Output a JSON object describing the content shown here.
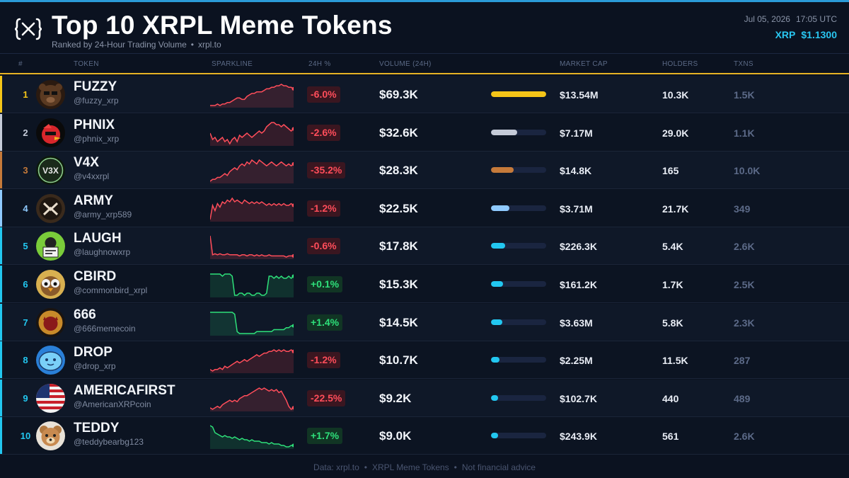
{
  "header": {
    "title": "Top 10 XRPL Meme Tokens",
    "subtitle_left": "Ranked by 24-Hour Trading Volume",
    "subtitle_sep": "•",
    "subtitle_right": "xrpl.to",
    "date": "Jul 05, 2026",
    "time": "17:05 UTC",
    "xrp_label": "XRP",
    "xrp_price": "$1.1300"
  },
  "columns": {
    "rank": "#",
    "token": "TOKEN",
    "sparkline": "SPARKLINE",
    "change": "24H %",
    "volume": "VOLUME (24H)",
    "market_cap": "MARKET CAP",
    "holders": "HOLDERS",
    "txns": "TXNS"
  },
  "colors": {
    "negative": "#ff4d5a",
    "positive": "#2ee07a",
    "gold": "#f5c518",
    "silver": "#c5cbd8",
    "bronze": "#c67a3a",
    "light_blue": "#8fcaff",
    "cyan": "#22c7f0"
  },
  "rows": [
    {
      "rank": "1",
      "name": "FUZZY",
      "handle": "@fuzzy_xrp",
      "change": "-6.0%",
      "dir": "neg",
      "volume": "$69.3K",
      "volume_share": 1.0,
      "bar_color": "#f5c518",
      "rank_color": "#f5c518",
      "market_cap": "$13.54M",
      "holders": "10.3K",
      "txns": "1.5K",
      "avatar": "bear-face-icon",
      "spark": [
        2,
        2,
        2,
        3,
        2,
        3,
        3,
        4,
        4,
        5,
        6,
        7,
        7,
        6,
        6,
        8,
        9,
        10,
        10,
        11,
        11,
        11,
        12,
        13,
        13,
        14,
        14,
        15,
        15,
        16,
        15,
        15,
        14,
        14,
        13
      ]
    },
    {
      "rank": "2",
      "name": "PHNIX",
      "handle": "@phnix_xrp",
      "change": "-2.6%",
      "dir": "neg",
      "volume": "$32.6K",
      "volume_share": 0.47,
      "bar_color": "#c5cbd8",
      "rank_color": "#c5cbd8",
      "market_cap": "$7.17M",
      "holders": "29.0K",
      "txns": "1.1K",
      "avatar": "red-bird-icon",
      "spark": [
        8,
        5,
        6,
        4,
        5,
        6,
        4,
        5,
        3,
        5,
        6,
        4,
        7,
        6,
        7,
        8,
        7,
        6,
        7,
        8,
        9,
        8,
        9,
        11,
        12,
        13,
        13,
        12,
        12,
        11,
        12,
        11,
        10,
        9,
        10
      ]
    },
    {
      "rank": "3",
      "name": "V4X",
      "handle": "@v4xxrpl",
      "change": "-35.2%",
      "dir": "neg",
      "volume": "$28.3K",
      "volume_share": 0.41,
      "bar_color": "#c67a3a",
      "rank_color": "#c67a3a",
      "market_cap": "$14.8K",
      "holders": "165",
      "txns": "10.0K",
      "avatar": "v4x-logo-icon",
      "spark": [
        3,
        4,
        4,
        5,
        5,
        6,
        7,
        6,
        8,
        9,
        10,
        9,
        11,
        12,
        11,
        13,
        12,
        14,
        13,
        12,
        14,
        13,
        12,
        11,
        12,
        13,
        12,
        11,
        12,
        13,
        12,
        11,
        12,
        11,
        12
      ]
    },
    {
      "rank": "4",
      "name": "ARMY",
      "handle": "@army_xrp589",
      "change": "-1.2%",
      "dir": "neg",
      "volume": "$22.5K",
      "volume_share": 0.33,
      "bar_color": "#8fcaff",
      "rank_color": "#8fcaff",
      "market_cap": "$3.71M",
      "holders": "21.7K",
      "txns": "349",
      "avatar": "army-x-icon",
      "spark": [
        4,
        12,
        9,
        13,
        11,
        14,
        13,
        15,
        14,
        16,
        14,
        15,
        14,
        13,
        15,
        14,
        13,
        14,
        13,
        14,
        13,
        14,
        13,
        12,
        13,
        12,
        13,
        12,
        13,
        12,
        13,
        12,
        12,
        13,
        12
      ]
    },
    {
      "rank": "5",
      "name": "LAUGH",
      "handle": "@laughnowxrp",
      "change": "-0.6%",
      "dir": "neg",
      "volume": "$17.8K",
      "volume_share": 0.25,
      "bar_color": "#22c7f0",
      "rank_color": "#22c7f0",
      "market_cap": "$226.3K",
      "holders": "5.4K",
      "txns": "2.6K",
      "avatar": "laugh-sign-icon",
      "spark": [
        20,
        3,
        4,
        3,
        4,
        3,
        3,
        4,
        3,
        3,
        3,
        3,
        2,
        3,
        3,
        2,
        3,
        3,
        2,
        3,
        2,
        3,
        2,
        2,
        3,
        2,
        2,
        2,
        2,
        2,
        2,
        1,
        2,
        2,
        2
      ]
    },
    {
      "rank": "6",
      "name": "CBIRD",
      "handle": "@commonbird_xrpl",
      "change": "+0.1%",
      "dir": "pos",
      "volume": "$15.3K",
      "volume_share": 0.22,
      "bar_color": "#22c7f0",
      "rank_color": "#22c7f0",
      "market_cap": "$161.2K",
      "holders": "1.7K",
      "txns": "2.5K",
      "avatar": "owl-bird-icon",
      "spark": [
        14,
        14,
        14,
        14,
        14,
        13,
        14,
        14,
        14,
        13,
        4,
        4,
        5,
        5,
        4,
        5,
        5,
        4,
        4,
        5,
        5,
        4,
        4,
        5,
        13,
        13,
        12,
        13,
        12,
        13,
        12,
        12,
        13,
        12,
        13
      ]
    },
    {
      "rank": "7",
      "name": "666",
      "handle": "@666memecoin",
      "change": "+1.4%",
      "dir": "pos",
      "volume": "$14.5K",
      "volume_share": 0.21,
      "bar_color": "#22c7f0",
      "rank_color": "#22c7f0",
      "market_cap": "$3.63M",
      "holders": "5.8K",
      "txns": "2.3K",
      "avatar": "devil-coin-icon",
      "spark": [
        13,
        13,
        13,
        13,
        13,
        13,
        13,
        13,
        13,
        13,
        12,
        3,
        2,
        2,
        2,
        2,
        2,
        2,
        2,
        3,
        3,
        3,
        3,
        3,
        3,
        3,
        4,
        4,
        4,
        4,
        4,
        5,
        5,
        6,
        6
      ]
    },
    {
      "rank": "8",
      "name": "DROP",
      "handle": "@drop_xrp",
      "change": "-1.2%",
      "dir": "neg",
      "volume": "$10.7K",
      "volume_share": 0.15,
      "bar_color": "#22c7f0",
      "rank_color": "#22c7f0",
      "market_cap": "$2.25M",
      "holders": "11.5K",
      "txns": "287",
      "avatar": "water-drop-icon",
      "spark": [
        3,
        2,
        3,
        3,
        4,
        3,
        5,
        4,
        5,
        6,
        7,
        8,
        7,
        8,
        9,
        8,
        9,
        10,
        11,
        12,
        11,
        12,
        13,
        13,
        14,
        14,
        15,
        14,
        15,
        14,
        15,
        14,
        14,
        15,
        14
      ]
    },
    {
      "rank": "9",
      "name": "AMERICAFIRST",
      "handle": "@AmericanXRPcoin",
      "change": "-22.5%",
      "dir": "neg",
      "volume": "$9.2K",
      "volume_share": 0.13,
      "bar_color": "#22c7f0",
      "rank_color": "#22c7f0",
      "market_cap": "$102.7K",
      "holders": "440",
      "txns": "489",
      "avatar": "us-flag-icon",
      "spark": [
        4,
        3,
        4,
        5,
        4,
        6,
        7,
        8,
        9,
        8,
        9,
        8,
        10,
        11,
        12,
        12,
        13,
        14,
        15,
        16,
        17,
        16,
        17,
        16,
        15,
        16,
        15,
        16,
        14,
        15,
        12,
        9,
        5,
        3,
        4
      ]
    },
    {
      "rank": "10",
      "name": "TEDDY",
      "handle": "@teddybearbg123",
      "change": "+1.7%",
      "dir": "pos",
      "volume": "$9.0K",
      "volume_share": 0.13,
      "bar_color": "#22c7f0",
      "rank_color": "#22c7f0",
      "market_cap": "$243.9K",
      "holders": "561",
      "txns": "2.6K",
      "avatar": "teddy-bear-icon",
      "spark": [
        17,
        16,
        12,
        11,
        10,
        9,
        10,
        9,
        9,
        8,
        9,
        8,
        7,
        8,
        7,
        7,
        6,
        7,
        6,
        6,
        6,
        5,
        5,
        5,
        4,
        5,
        4,
        4,
        4,
        3,
        3,
        2,
        2,
        3,
        3
      ]
    }
  ],
  "footer": {
    "source": "Data: xrpl.to",
    "sep": "•",
    "name": "XRPL Meme Tokens",
    "disclaimer": "Not financial advice"
  }
}
